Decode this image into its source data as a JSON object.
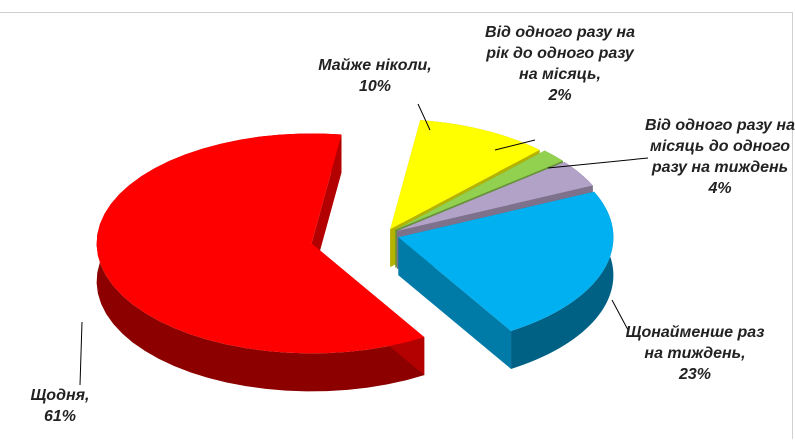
{
  "chart_data": {
    "type": "pie3d",
    "categories": [
      "Майже ніколи,",
      "Від одного разу на рік до одного разу на місяць,",
      "Від одного разу на місяць до одного разу на тиждень",
      "Щонайменше раз на тиждень,",
      "Щодня,"
    ],
    "values": [
      10,
      2,
      4,
      23,
      61
    ],
    "value_labels": [
      "10%",
      "2%",
      "4%",
      "23%",
      "61%"
    ],
    "colors": [
      "#ffff00",
      "#92d050",
      "#b3a2c7",
      "#00b0f0",
      "#ff0000"
    ]
  }
}
